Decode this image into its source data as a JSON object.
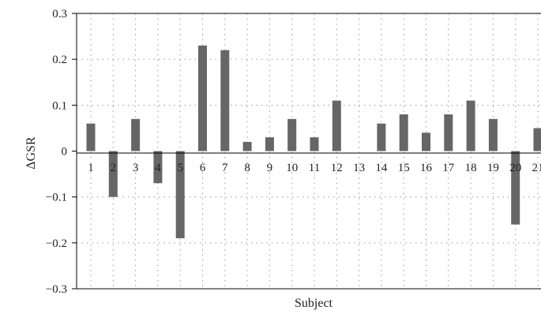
{
  "chart_data": {
    "type": "bar",
    "title": "",
    "xlabel": "Subject",
    "ylabel": "ΔGSR",
    "ylim": [
      -0.3,
      0.3
    ],
    "yticks": [
      -0.3,
      -0.2,
      -0.1,
      0,
      0.1,
      0.2,
      0.3
    ],
    "ytick_labels": [
      "−0.3",
      "−0.2",
      "−0.1",
      "0",
      "0.1",
      "0.2",
      "0.3"
    ],
    "categories": [
      "1",
      "2",
      "3",
      "4",
      "5",
      "6",
      "7",
      "8",
      "9",
      "10",
      "11",
      "12",
      "13",
      "14",
      "15",
      "16",
      "17",
      "18",
      "19",
      "20",
      "21"
    ],
    "values": [
      0.06,
      -0.1,
      0.07,
      -0.07,
      -0.19,
      0.23,
      0.22,
      0.02,
      0.03,
      0.07,
      0.03,
      0.11,
      0.0,
      0.06,
      0.08,
      0.04,
      0.08,
      0.11,
      0.07,
      -0.16,
      0.05
    ],
    "grid": true,
    "colors": {
      "bar": "#666666",
      "axis": "#000000",
      "grid": "#9a9a9a"
    }
  }
}
